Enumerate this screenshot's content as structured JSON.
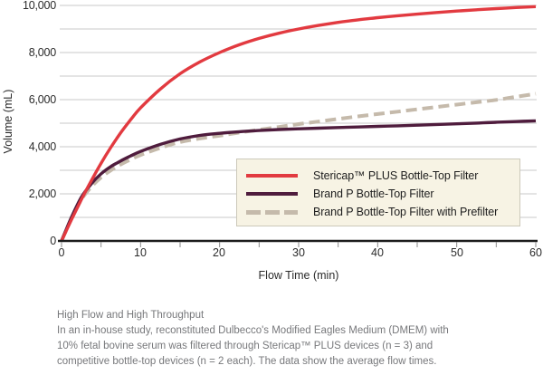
{
  "chart_data": {
    "type": "line",
    "title": "",
    "xlabel": "Flow Time (min)",
    "ylabel": "Volume (mL)",
    "xlim": [
      0,
      60
    ],
    "ylim": [
      0,
      10000
    ],
    "grid": "horizontal gridlines every 1000, light gray",
    "y_gridline_step": 1000,
    "x_minor_tick_step": 5,
    "legend_position": "inside lower right, cream box",
    "x_tick_labels": [
      "0",
      "10",
      "20",
      "30",
      "40",
      "50",
      "60"
    ],
    "y_tick_labels": [
      "0",
      "2,000",
      "4,000",
      "6,000",
      "8,000",
      "10,000"
    ],
    "x": [
      0,
      1.25,
      2.5,
      3.75,
      5,
      6.25,
      7.5,
      8.75,
      10,
      12.5,
      15,
      17.5,
      20,
      22.5,
      25,
      27.5,
      30,
      32.5,
      35,
      37.5,
      40,
      42.5,
      45,
      47.5,
      50,
      52.5,
      55,
      57.5,
      60
    ],
    "series": [
      {
        "name": "Stericap™ PLUS Bottle-Top Filter",
        "color": "#e23a40",
        "style": "solid",
        "values": [
          0,
          900,
          1750,
          2550,
          3300,
          3980,
          4600,
          5150,
          5650,
          6450,
          7100,
          7600,
          8000,
          8330,
          8600,
          8820,
          9000,
          9150,
          9280,
          9390,
          9480,
          9560,
          9630,
          9700,
          9760,
          9815,
          9865,
          9910,
          9950
        ]
      },
      {
        "name": "Brand P Bottle-Top Filter",
        "color": "#4f1c3d",
        "style": "solid",
        "values": [
          0,
          1000,
          1850,
          2420,
          2850,
          3160,
          3400,
          3610,
          3800,
          4100,
          4330,
          4480,
          4570,
          4640,
          4690,
          4730,
          4760,
          4790,
          4815,
          4840,
          4865,
          4890,
          4915,
          4945,
          4975,
          5005,
          5040,
          5070,
          5100
        ]
      },
      {
        "name": "Brand P Bottle-Top Filter with Prefilter",
        "color": "#c5baab",
        "style": "dashed",
        "values": [
          0,
          950,
          1750,
          2290,
          2700,
          3000,
          3250,
          3460,
          3650,
          3950,
          4200,
          4350,
          4470,
          4600,
          4720,
          4840,
          4960,
          5070,
          5180,
          5290,
          5390,
          5490,
          5590,
          5690,
          5790,
          5890,
          5990,
          6120,
          6250
        ]
      }
    ],
    "colors": {
      "gridline": "#c8c8c8",
      "axis": "#1c1c1c",
      "tick": "#8a8a8a",
      "legend_background": "#f7f3e4",
      "legend_border": "#ccc9ba",
      "caption_text": "#77787b"
    }
  },
  "caption": {
    "heading": "High Flow and High Throughput",
    "lines": [
      "In an in-house study, reconstituted Dulbecco's Modified Eagles Medium (DMEM) with",
      "10% fetal bovine serum was filtered through Stericap™ PLUS devices (n = 3) and",
      "competitive bottle-top devices (n = 2 each). The data show the average flow times."
    ]
  }
}
